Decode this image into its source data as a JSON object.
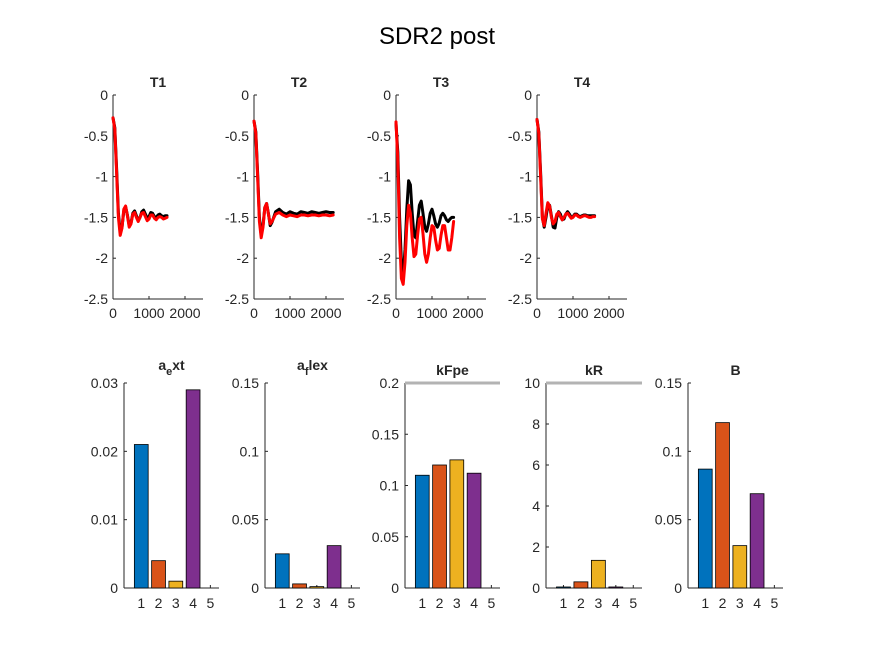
{
  "figure": {
    "title": "SDR2 post"
  },
  "colors": {
    "measured": "#000000",
    "fit": "#ff0000",
    "bar1": "#0072bd",
    "bar2": "#d95319",
    "bar3": "#edb120",
    "bar4": "#7e2f8e",
    "limit_line": "#b3b3b3",
    "axis": "#262626"
  },
  "chart_data": [
    {
      "type": "line",
      "title": "T1",
      "xlim": [
        0,
        2500
      ],
      "ylim": [
        -2.5,
        0
      ],
      "xticks": [
        "0",
        "1000",
        "2000"
      ],
      "yticks": [
        "0",
        "-0.5",
        "-1",
        "-1.5",
        "-2",
        "-2.5"
      ],
      "series": [
        {
          "color": "measured",
          "x": [
            0,
            50,
            100,
            150,
            200,
            250,
            300,
            350,
            400,
            450,
            500,
            550,
            600,
            650,
            700,
            750,
            800,
            850,
            900,
            950,
            1000,
            1050,
            1100,
            1150,
            1200,
            1250,
            1300,
            1350,
            1400,
            1450,
            1500
          ],
          "y": [
            -0.28,
            -0.4,
            -0.9,
            -1.45,
            -1.68,
            -1.62,
            -1.42,
            -1.37,
            -1.47,
            -1.6,
            -1.57,
            -1.45,
            -1.42,
            -1.48,
            -1.54,
            -1.5,
            -1.43,
            -1.41,
            -1.46,
            -1.51,
            -1.49,
            -1.44,
            -1.45,
            -1.49,
            -1.5,
            -1.47,
            -1.46,
            -1.48,
            -1.49,
            -1.48,
            -1.48
          ]
        },
        {
          "color": "fit",
          "x": [
            0,
            50,
            100,
            150,
            200,
            250,
            300,
            350,
            400,
            450,
            500,
            550,
            600,
            650,
            700,
            750,
            800,
            850,
            900,
            950,
            1000,
            1050,
            1100,
            1150,
            1200,
            1250,
            1300,
            1350,
            1400,
            1450,
            1500
          ],
          "y": [
            -0.28,
            -0.42,
            -0.95,
            -1.5,
            -1.72,
            -1.63,
            -1.4,
            -1.36,
            -1.48,
            -1.62,
            -1.58,
            -1.46,
            -1.44,
            -1.5,
            -1.55,
            -1.5,
            -1.45,
            -1.44,
            -1.49,
            -1.54,
            -1.52,
            -1.47,
            -1.47,
            -1.51,
            -1.53,
            -1.5,
            -1.49,
            -1.5,
            -1.52,
            -1.51,
            -1.5
          ]
        }
      ]
    },
    {
      "type": "line",
      "title": "T2",
      "xlim": [
        0,
        2500
      ],
      "ylim": [
        -2.5,
        0
      ],
      "xticks": [
        "0",
        "1000",
        "2000"
      ],
      "yticks": [
        "0",
        "-0.5",
        "-1",
        "-1.5",
        "-2",
        "-2.5"
      ],
      "series": [
        {
          "color": "measured",
          "x": [
            0,
            50,
            100,
            150,
            200,
            250,
            300,
            350,
            400,
            450,
            500,
            600,
            700,
            800,
            900,
            1000,
            1100,
            1200,
            1300,
            1400,
            1500,
            1600,
            1700,
            1800,
            1900,
            2000,
            2100,
            2200
          ],
          "y": [
            -0.32,
            -0.45,
            -0.95,
            -1.5,
            -1.72,
            -1.6,
            -1.38,
            -1.33,
            -1.45,
            -1.6,
            -1.56,
            -1.43,
            -1.4,
            -1.44,
            -1.46,
            -1.43,
            -1.45,
            -1.46,
            -1.43,
            -1.44,
            -1.45,
            -1.43,
            -1.44,
            -1.45,
            -1.44,
            -1.43,
            -1.44,
            -1.44
          ]
        },
        {
          "color": "fit",
          "x": [
            0,
            50,
            100,
            150,
            200,
            250,
            300,
            350,
            400,
            450,
            500,
            600,
            700,
            800,
            900,
            1000,
            1100,
            1200,
            1300,
            1400,
            1500,
            1600,
            1700,
            1800,
            1900,
            2000,
            2100,
            2200
          ],
          "y": [
            -0.32,
            -0.47,
            -1.0,
            -1.55,
            -1.75,
            -1.62,
            -1.38,
            -1.33,
            -1.46,
            -1.58,
            -1.55,
            -1.46,
            -1.44,
            -1.47,
            -1.49,
            -1.47,
            -1.48,
            -1.49,
            -1.47,
            -1.47,
            -1.48,
            -1.47,
            -1.47,
            -1.48,
            -1.47,
            -1.47,
            -1.48,
            -1.47
          ]
        }
      ]
    },
    {
      "type": "line",
      "title": "T3",
      "xlim": [
        0,
        2500
      ],
      "ylim": [
        -2.5,
        0
      ],
      "xticks": [
        "0",
        "1000",
        "2000"
      ],
      "yticks": [
        "0",
        "-0.5",
        "-1",
        "-1.5",
        "-2",
        "-2.5"
      ],
      "series": [
        {
          "color": "measured",
          "x": [
            0,
            50,
            100,
            150,
            200,
            250,
            300,
            350,
            400,
            450,
            500,
            550,
            600,
            650,
            700,
            750,
            800,
            850,
            900,
            950,
            1000,
            1050,
            1100,
            1150,
            1200,
            1250,
            1300,
            1350,
            1400,
            1450,
            1500,
            1550,
            1600
          ],
          "y": [
            -0.35,
            -0.7,
            -1.5,
            -2.05,
            -2.2,
            -1.9,
            -1.4,
            -1.05,
            -1.1,
            -1.45,
            -1.72,
            -1.75,
            -1.55,
            -1.35,
            -1.3,
            -1.45,
            -1.62,
            -1.67,
            -1.58,
            -1.45,
            -1.4,
            -1.48,
            -1.58,
            -1.62,
            -1.57,
            -1.48,
            -1.45,
            -1.48,
            -1.53,
            -1.55,
            -1.52,
            -1.5,
            -1.5
          ]
        },
        {
          "color": "fit",
          "x": [
            0,
            50,
            100,
            150,
            200,
            250,
            300,
            350,
            400,
            450,
            500,
            550,
            600,
            650,
            700,
            750,
            800,
            850,
            900,
            950,
            1000,
            1050,
            1100,
            1150,
            1200,
            1250,
            1300,
            1350,
            1400,
            1450,
            1500,
            1550,
            1600
          ],
          "y": [
            -0.33,
            -0.8,
            -1.75,
            -2.25,
            -2.32,
            -2.05,
            -1.6,
            -1.35,
            -1.45,
            -1.75,
            -1.98,
            -1.95,
            -1.72,
            -1.52,
            -1.5,
            -1.7,
            -1.95,
            -2.05,
            -1.95,
            -1.75,
            -1.6,
            -1.62,
            -1.78,
            -1.9,
            -1.88,
            -1.72,
            -1.6,
            -1.6,
            -1.75,
            -1.9,
            -1.9,
            -1.75,
            -1.55
          ]
        }
      ]
    },
    {
      "type": "line",
      "title": "T4",
      "xlim": [
        0,
        2500
      ],
      "ylim": [
        -2.5,
        0
      ],
      "xticks": [
        "0",
        "1000",
        "2000"
      ],
      "yticks": [
        "0",
        "-0.5",
        "-1",
        "-1.5",
        "-2",
        "-2.5"
      ],
      "series": [
        {
          "color": "measured",
          "x": [
            0,
            50,
            100,
            150,
            200,
            250,
            300,
            350,
            400,
            450,
            500,
            550,
            600,
            650,
            700,
            750,
            800,
            850,
            900,
            950,
            1000,
            1050,
            1100,
            1150,
            1200,
            1250,
            1300,
            1350,
            1400,
            1450,
            1500,
            1550,
            1600
          ],
          "y": [
            -0.3,
            -0.45,
            -0.95,
            -1.5,
            -1.62,
            -1.5,
            -1.35,
            -1.35,
            -1.48,
            -1.62,
            -1.63,
            -1.5,
            -1.43,
            -1.46,
            -1.53,
            -1.52,
            -1.46,
            -1.43,
            -1.46,
            -1.5,
            -1.49,
            -1.46,
            -1.46,
            -1.48,
            -1.49,
            -1.48,
            -1.47,
            -1.47,
            -1.48,
            -1.48,
            -1.48,
            -1.48,
            -1.48
          ]
        },
        {
          "color": "fit",
          "x": [
            0,
            50,
            100,
            150,
            200,
            250,
            300,
            350,
            400,
            450,
            500,
            550,
            600,
            650,
            700,
            750,
            800,
            850,
            900,
            950,
            1000,
            1050,
            1100,
            1150,
            1200,
            1250,
            1300,
            1350,
            1400,
            1450,
            1500,
            1550,
            1600
          ],
          "y": [
            -0.3,
            -0.47,
            -1.0,
            -1.52,
            -1.6,
            -1.45,
            -1.32,
            -1.36,
            -1.5,
            -1.58,
            -1.55,
            -1.46,
            -1.44,
            -1.49,
            -1.53,
            -1.5,
            -1.46,
            -1.45,
            -1.48,
            -1.51,
            -1.5,
            -1.47,
            -1.47,
            -1.49,
            -1.5,
            -1.49,
            -1.48,
            -1.48,
            -1.49,
            -1.5,
            -1.5,
            -1.49,
            -1.49
          ]
        }
      ]
    },
    {
      "type": "bar",
      "title_base": "a",
      "title_sub": "e",
      "title_rest": "xt",
      "categories": [
        "1",
        "2",
        "3",
        "4"
      ],
      "xticks": [
        "1",
        "2",
        "3",
        "4",
        "5"
      ],
      "values": [
        0.021,
        0.004,
        0.001,
        0.029
      ],
      "ylim": [
        0,
        0.03
      ],
      "yticks": [
        "0",
        "0.01",
        "0.02",
        "0.03"
      ]
    },
    {
      "type": "bar",
      "title_base": "a",
      "title_sub": "f",
      "title_rest": "lex",
      "categories": [
        "1",
        "2",
        "3",
        "4"
      ],
      "xticks": [
        "1",
        "2",
        "3",
        "4",
        "5"
      ],
      "values": [
        0.025,
        0.003,
        0.001,
        0.031
      ],
      "ylim": [
        0,
        0.15
      ],
      "yticks": [
        "0",
        "0.05",
        "0.1",
        "0.15"
      ]
    },
    {
      "type": "bar",
      "title": "kFpe",
      "categories": [
        "1",
        "2",
        "3",
        "4"
      ],
      "xticks": [
        "1",
        "2",
        "3",
        "4",
        "5"
      ],
      "values": [
        0.11,
        0.12,
        0.125,
        0.112
      ],
      "ylim": [
        0,
        0.2
      ],
      "limit_line": 0.2,
      "yticks": [
        "0",
        "0.05",
        "0.1",
        "0.15",
        "0.2"
      ]
    },
    {
      "type": "bar",
      "title": "kR",
      "categories": [
        "1",
        "2",
        "3",
        "4"
      ],
      "xticks": [
        "1",
        "2",
        "3",
        "4",
        "5"
      ],
      "values": [
        0.05,
        0.3,
        1.35,
        0.05
      ],
      "ylim": [
        0,
        10
      ],
      "limit_line": 10,
      "yticks": [
        "0",
        "2",
        "4",
        "6",
        "8",
        "10"
      ]
    },
    {
      "type": "bar",
      "title": "B",
      "categories": [
        "1",
        "2",
        "3",
        "4"
      ],
      "xticks": [
        "1",
        "2",
        "3",
        "4",
        "5"
      ],
      "values": [
        0.087,
        0.121,
        0.031,
        0.069
      ],
      "ylim": [
        0,
        0.15
      ],
      "yticks": [
        "0",
        "0.05",
        "0.1",
        "0.15"
      ]
    }
  ]
}
